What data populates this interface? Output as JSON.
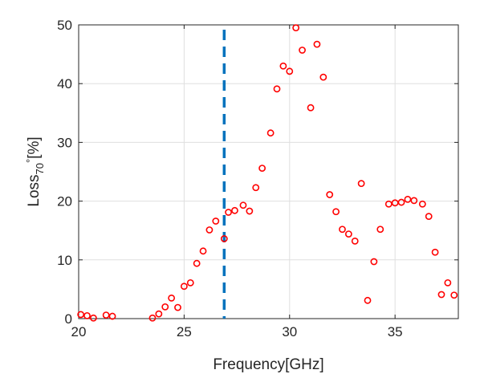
{
  "chart_data": {
    "type": "scatter",
    "title": "",
    "xlabel": "Frequency[GHz]",
    "ylabel": {
      "base": "Loss",
      "subscript": "70",
      "superscript": "°",
      "suffix": "[%]"
    },
    "xlim": [
      20,
      38
    ],
    "ylim": [
      0,
      50
    ],
    "xticks": [
      20,
      25,
      30,
      35
    ],
    "yticks": [
      0,
      10,
      20,
      30,
      40,
      50
    ],
    "grid": true,
    "marker_color": "#ff0000",
    "marker_shape": "circle-open",
    "vline": {
      "x": 26.9,
      "color": "#0072bd",
      "style": "dashed"
    },
    "series": [
      {
        "x": [
          20.1,
          20.4,
          20.7,
          21.3,
          21.6,
          23.5,
          23.8,
          24.1,
          24.4,
          24.7,
          25.0,
          25.3,
          25.6,
          25.9,
          26.2,
          26.5,
          26.9,
          27.1,
          27.4,
          27.8,
          28.1,
          28.4,
          28.7,
          29.1,
          29.4,
          29.7,
          30.0,
          30.3,
          30.6,
          31.0,
          31.3,
          31.6,
          31.9,
          32.2,
          32.5,
          32.8,
          33.1,
          33.4,
          33.7,
          34.0,
          34.3,
          34.7,
          35.0,
          35.3,
          35.6,
          35.9,
          36.3,
          36.6,
          36.9,
          37.2,
          37.5,
          37.8
        ],
        "y": [
          0.7,
          0.5,
          0.1,
          0.6,
          0.4,
          0.1,
          0.8,
          2.0,
          3.5,
          1.9,
          5.5,
          6.1,
          9.4,
          11.5,
          15.1,
          16.6,
          13.6,
          18.1,
          18.4,
          19.3,
          18.3,
          22.3,
          25.6,
          31.6,
          39.1,
          43.0,
          42.1,
          49.5,
          45.7,
          35.9,
          46.7,
          41.1,
          21.1,
          18.2,
          15.2,
          14.4,
          13.2,
          23.0,
          3.1,
          9.7,
          15.2,
          19.5,
          19.7,
          19.8,
          20.3,
          20.1,
          19.5,
          17.4,
          11.3,
          4.1,
          6.1,
          4.0
        ]
      }
    ]
  }
}
